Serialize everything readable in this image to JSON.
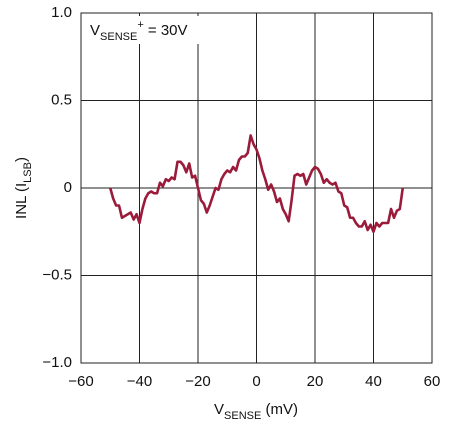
{
  "chart_data": {
    "type": "line",
    "annotation": [
      "V",
      "SENSE",
      "+",
      " = 30V"
    ],
    "xlabel": [
      "V",
      "SENSE",
      " (mV)"
    ],
    "ylabel": [
      "INL (I",
      "LSB",
      ")"
    ],
    "x": [
      -50,
      -49,
      -48,
      -47,
      -46,
      -45,
      -44,
      -43,
      -42,
      -41,
      -40,
      -39,
      -38,
      -37,
      -36,
      -35,
      -34,
      -33,
      -32,
      -31,
      -30,
      -29,
      -28,
      -27,
      -26,
      -25,
      -24,
      -23,
      -22,
      -21,
      -20,
      -19,
      -18,
      -17,
      -16,
      -15,
      -14,
      -13,
      -12,
      -11,
      -10,
      -9,
      -8,
      -7,
      -6,
      -5,
      -4,
      -3,
      -2,
      -1,
      0,
      1,
      2,
      3,
      4,
      5,
      6,
      7,
      8,
      9,
      10,
      11,
      12,
      13,
      14,
      15,
      16,
      17,
      18,
      19,
      20,
      21,
      22,
      23,
      24,
      25,
      26,
      27,
      28,
      29,
      30,
      31,
      32,
      33,
      34,
      35,
      36,
      37,
      38,
      39,
      40,
      41,
      42,
      43,
      44,
      45,
      46,
      47,
      48,
      49,
      50
    ],
    "series": [
      {
        "color": "#9b1b3a",
        "values": [
          0,
          -0.06,
          -0.1,
          -0.1,
          -0.17,
          -0.16,
          -0.15,
          -0.14,
          -0.18,
          -0.15,
          -0.2,
          -0.12,
          -0.06,
          -0.03,
          -0.02,
          -0.03,
          -0.03,
          0.03,
          0.01,
          0.05,
          0.04,
          0.06,
          0.05,
          0.15,
          0.15,
          0.13,
          0.09,
          0.14,
          0.06,
          0.07,
          0,
          -0.07,
          -0.09,
          -0.14,
          -0.1,
          -0.05,
          0,
          -0.01,
          0.05,
          0.08,
          0.1,
          0.09,
          0.12,
          0.1,
          0.16,
          0.18,
          0.18,
          0.2,
          0.3,
          0.25,
          0.22,
          0.17,
          0.1,
          0.05,
          -0.01,
          0.02,
          -0.02,
          -0.08,
          -0.06,
          -0.12,
          -0.15,
          -0.19,
          -0.07,
          0.07,
          0.08,
          0.07,
          0.08,
          0.02,
          0.06,
          0.1,
          0.12,
          0.11,
          0.08,
          0.03,
          0.05,
          0.03,
          0.02,
          0.03,
          -0.02,
          -0.03,
          -0.1,
          -0.11,
          -0.17,
          -0.17,
          -0.2,
          -0.22,
          -0.22,
          -0.19,
          -0.24,
          -0.21,
          -0.25,
          -0.2,
          -0.22,
          -0.2,
          -0.2,
          -0.2,
          -0.12,
          -0.17,
          -0.13,
          -0.12,
          0
        ]
      }
    ],
    "xlim": [
      -60,
      60
    ],
    "xticks": [
      {
        "value": -60,
        "label": "−60"
      },
      {
        "value": -40,
        "label": "−40"
      },
      {
        "value": -20,
        "label": "−20"
      },
      0,
      20,
      40,
      60
    ],
    "ylim": [
      -1,
      1
    ],
    "yticks": [
      {
        "value": -1,
        "label": "−1.0"
      },
      {
        "value": -0.5,
        "label": "−0.5"
      },
      0,
      0.5,
      {
        "value": 1,
        "label": "1.0"
      }
    ],
    "grid": true
  }
}
